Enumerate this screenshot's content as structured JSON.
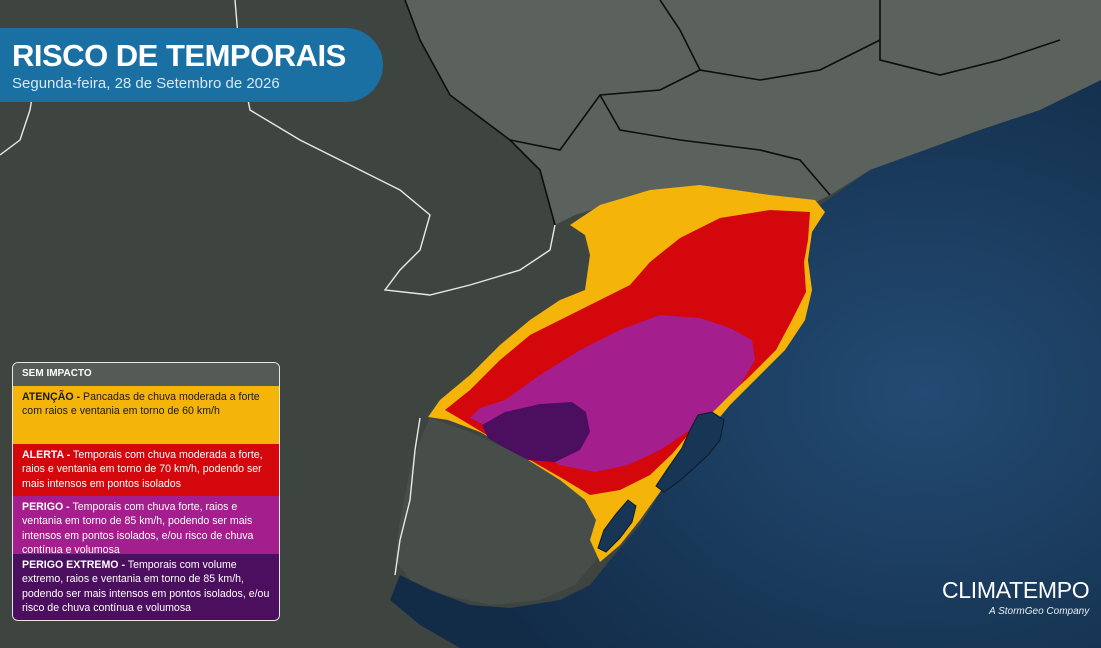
{
  "header": {
    "title": "RISCO DE TEMPORAIS",
    "subtitle": "Segunda-feira, 28 de Setembro de 2026"
  },
  "legend": {
    "none": "SEM IMPACTO",
    "attention": {
      "label": "ATENÇÃO -",
      "text": " Pancadas de chuva moderada a forte com raios e ventania em torno de 60 km/h",
      "color": "#f5b40a"
    },
    "alert": {
      "label": "ALERTA -",
      "text": " Temporais com chuva moderada a forte, raios e ventania em torno de 70 km/h, podendo ser mais intensos em pontos isolados",
      "color": "#d4070d"
    },
    "danger": {
      "label": "PERIGO -",
      "text": " Temporais com chuva forte, raios e ventania em torno de 85 km/h, podendo ser mais intensos em pontos isolados, e/ou risco de chuva contínua e volumosa",
      "color": "#a51e8d"
    },
    "extreme": {
      "label": "PERIGO EXTREMO -",
      "text": " Temporais com volume extremo, raios e ventania em torno de 85 km/h, podendo ser mais intensos em pontos isolados, e/ou risco de chuva contínua e volumosa",
      "color": "#4c0e5e"
    }
  },
  "brand": {
    "name": "CLIMATEMPO",
    "tagline": "A StormGeo Company"
  },
  "colors": {
    "ocean": "#173656",
    "land": "#3f4642",
    "title_bg": "#1a6fa3"
  }
}
